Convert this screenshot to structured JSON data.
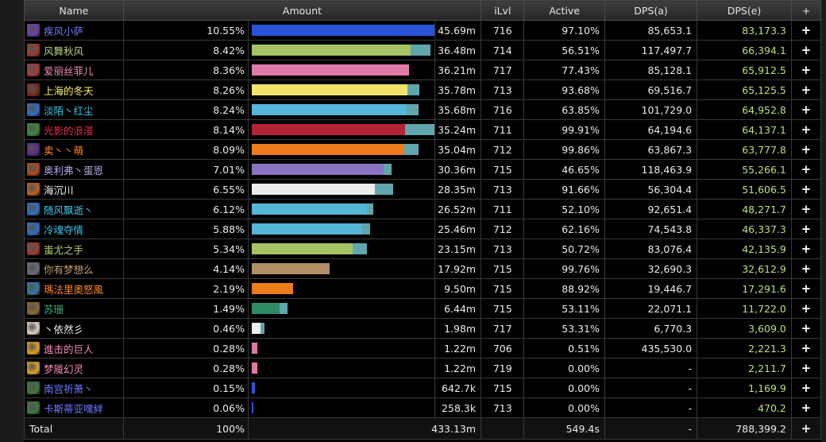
{
  "header": {
    "name": "Name",
    "amount": "Amount",
    "ilvl": "iLvl",
    "active": "Active",
    "dps_a": "DPS(a)",
    "dps_e": "DPS(e)",
    "add": "+"
  },
  "colors": {
    "extension": "#5fa6ad",
    "dps_e_text": "#b6e27c"
  },
  "rows": [
    {
      "name": "疾风小萨",
      "name_color": "#6e7dff",
      "icon": "shaman-lightning-icon",
      "icon_color": "#6b3fa8",
      "pct": "10.55%",
      "bar_color": "#2a54d8",
      "bar_fraction": 1.0,
      "ext_fraction": 0.08,
      "amount": "45.69m",
      "ilvl": "716",
      "active": "97.10%",
      "dps_a": "85,653.1",
      "dps_e": "83,173.3",
      "plus": "+"
    },
    {
      "name": "风舞秋风",
      "name_color": "#b4d47a",
      "icon": "hunter-beast-icon",
      "icon_color": "#9c3a2c",
      "pct": "8.42%",
      "bar_color": "#a4c466",
      "bar_fraction": 0.7984,
      "ext_fraction": 0.1,
      "amount": "36.48m",
      "ilvl": "714",
      "active": "56.51%",
      "dps_a": "117,497.7",
      "dps_e": "66,394.1",
      "plus": "+"
    },
    {
      "name": "爱丽丝菲儿",
      "name_color": "#f48cba",
      "icon": "paladin-holy-icon",
      "icon_color": "#a23c3c",
      "pct": "8.36%",
      "bar_color": "#e079a8",
      "bar_fraction": 0.7926,
      "ext_fraction": 0.0,
      "amount": "36.21m",
      "ilvl": "717",
      "active": "77.43%",
      "dps_a": "85,128.1",
      "dps_e": "65,912.5",
      "plus": "+"
    },
    {
      "name": "上海的冬天",
      "name_color": "#fff468",
      "icon": "rogue-dagger-icon",
      "icon_color": "#7a2a1e",
      "pct": "8.26%",
      "bar_color": "#f0e46a",
      "bar_fraction": 0.7831,
      "ext_fraction": 0.06,
      "amount": "35.78m",
      "ilvl": "713",
      "active": "93.68%",
      "dps_a": "69,516.7",
      "dps_e": "65,125.5",
      "plus": "+"
    },
    {
      "name": "淡陌丶红尘",
      "name_color": "#3fc7eb",
      "icon": "mage-frost-icon",
      "icon_color": "#2c6fc4",
      "pct": "8.24%",
      "bar_color": "#56b6d8",
      "bar_fraction": 0.7812,
      "ext_fraction": 0.06,
      "amount": "35.68m",
      "ilvl": "716",
      "active": "63.85%",
      "dps_a": "101,729.0",
      "dps_e": "64,952.8",
      "plus": "+"
    },
    {
      "name": "光影的浪漫",
      "name_color": "#e0304a",
      "icon": "deathknight-skull-icon",
      "icon_color": "#3a8a3a",
      "pct": "8.14%",
      "bar_color": "#b42236",
      "bar_fraction": 0.7713,
      "ext_fraction": 0.17,
      "amount": "35.24m",
      "ilvl": "711",
      "active": "99.91%",
      "dps_a": "64,194.6",
      "dps_e": "64,137.1",
      "plus": "+"
    },
    {
      "name": "卖丶丶萌",
      "name_color": "#ff8a24",
      "icon": "druid-moonfire-icon",
      "icon_color": "#5a2a8a",
      "pct": "8.09%",
      "bar_color": "#ee7b1a",
      "bar_fraction": 0.7669,
      "ext_fraction": 0.07,
      "amount": "35.04m",
      "ilvl": "712",
      "active": "99.86%",
      "dps_a": "63,867.3",
      "dps_e": "63,777.8",
      "plus": "+"
    },
    {
      "name": "奥利弗丶蛋恩",
      "name_color": "#b6a8e6",
      "icon": "warlock-fire-icon",
      "icon_color": "#b04a1a",
      "pct": "7.01%",
      "bar_color": "#8a74c2",
      "bar_fraction": 0.6647,
      "ext_fraction": 0.04,
      "amount": "30.36m",
      "ilvl": "715",
      "active": "46.65%",
      "dps_a": "118,463.9",
      "dps_e": "55,266.1",
      "plus": "+"
    },
    {
      "name": "海沉川",
      "name_color": "#f2f2f2",
      "icon": "priest-flame-icon",
      "icon_color": "#c0601a",
      "pct": "6.55%",
      "bar_color": "#ededed",
      "bar_fraction": 0.6208,
      "ext_fraction": 0.09,
      "amount": "28.35m",
      "ilvl": "713",
      "active": "91.66%",
      "dps_a": "56,304.4",
      "dps_e": "51,606.5",
      "plus": "+"
    },
    {
      "name": "随风飘逝丶",
      "name_color": "#3fc7eb",
      "icon": "mage-frost-icon",
      "icon_color": "#2c6fc4",
      "pct": "6.12%",
      "bar_color": "#56b6d8",
      "bar_fraction": 0.5802,
      "ext_fraction": 0.03,
      "amount": "26.52m",
      "ilvl": "711",
      "active": "52.10%",
      "dps_a": "92,651.4",
      "dps_e": "48,271.7",
      "plus": "+"
    },
    {
      "name": "冷魂夺情",
      "name_color": "#3fc7eb",
      "icon": "mage-frost-icon",
      "icon_color": "#2c6fc4",
      "pct": "5.88%",
      "bar_color": "#56b6d8",
      "bar_fraction": 0.5577,
      "ext_fraction": 0.04,
      "amount": "25.46m",
      "ilvl": "712",
      "active": "62.16%",
      "dps_a": "74,543.8",
      "dps_e": "46,337.3",
      "plus": "+"
    },
    {
      "name": "蚩尤之手",
      "name_color": "#b4d47a",
      "icon": "hunter-beast-icon",
      "icon_color": "#9c3a2c",
      "pct": "5.34%",
      "bar_color": "#a4c466",
      "bar_fraction": 0.5066,
      "ext_fraction": 0.07,
      "amount": "23.15m",
      "ilvl": "713",
      "active": "50.72%",
      "dps_a": "83,076.4",
      "dps_e": "42,135.9",
      "plus": "+"
    },
    {
      "name": "你有梦想么",
      "name_color": "#c8a070",
      "icon": "warrior-shield-icon",
      "icon_color": "#6a6a7a",
      "pct": "4.14%",
      "bar_color": "#b08e66",
      "bar_fraction": 0.3922,
      "ext_fraction": 0.0,
      "amount": "17.92m",
      "ilvl": "715",
      "active": "99.76%",
      "dps_a": "32,690.3",
      "dps_e": "32,612.9",
      "plus": "+"
    },
    {
      "name": "瑪法里奧怒風",
      "name_color": "#ff8a24",
      "icon": "druid-moonfire-icon",
      "icon_color": "#2a7aa0",
      "pct": "2.19%",
      "bar_color": "#ee7b1a",
      "bar_fraction": 0.2079,
      "ext_fraction": 0.0,
      "amount": "9.50m",
      "ilvl": "715",
      "active": "88.92%",
      "dps_a": "19,446.7",
      "dps_e": "17,291.6",
      "plus": "+"
    },
    {
      "name": "苏珊",
      "name_color": "#38b07a",
      "icon": "monk-fist-icon",
      "icon_color": "#8a6a2a",
      "pct": "1.49%",
      "bar_color": "#2e8a62",
      "bar_fraction": 0.1409,
      "ext_fraction": 0.04,
      "amount": "6.44m",
      "ilvl": "715",
      "active": "53.11%",
      "dps_a": "22,071.1",
      "dps_e": "11,722.0",
      "plus": "+"
    },
    {
      "name": "丶依然彡",
      "name_color": "#f2f2f2",
      "icon": "priest-holy-icon",
      "icon_color": "#e8d0c0",
      "pct": "0.46%",
      "bar_color": "#ededed",
      "bar_fraction": 0.0433,
      "ext_fraction": 0.02,
      "amount": "1.98m",
      "ilvl": "717",
      "active": "53.31%",
      "dps_a": "6,770.3",
      "dps_e": "3,609.0",
      "plus": "+"
    },
    {
      "name": "進击的巨人",
      "name_color": "#f48cba",
      "icon": "paladin-holy-icon",
      "icon_color": "#e0a020",
      "pct": "0.28%",
      "bar_color": "#e079a8",
      "bar_fraction": 0.0267,
      "ext_fraction": 0.0,
      "amount": "1.22m",
      "ilvl": "706",
      "active": "0.51%",
      "dps_a": "435,530.0",
      "dps_e": "2,221.3",
      "plus": "+"
    },
    {
      "name": "梦魇幻灵",
      "name_color": "#f48cba",
      "icon": "paladin-holy-icon",
      "icon_color": "#e0a020",
      "pct": "0.28%",
      "bar_color": "#e079a8",
      "bar_fraction": 0.0267,
      "ext_fraction": 0.0,
      "amount": "1.22m",
      "ilvl": "719",
      "active": "0.00%",
      "dps_a": "-",
      "dps_e": "2,211.7",
      "plus": "+"
    },
    {
      "name": "南宫祈萧丶",
      "name_color": "#6e7dff",
      "icon": "shaman-totem-icon",
      "icon_color": "#3a7a3a",
      "pct": "0.15%",
      "bar_color": "#2a54d8",
      "bar_fraction": 0.014,
      "ext_fraction": 0.0,
      "amount": "642.7k",
      "ilvl": "715",
      "active": "0.00%",
      "dps_a": "-",
      "dps_e": "1,169.9",
      "plus": "+"
    },
    {
      "name": "卡斯蒂亚嘿絆",
      "name_color": "#6e7dff",
      "icon": "shaman-totem-icon",
      "icon_color": "#3a7a3a",
      "pct": "0.06%",
      "bar_color": "#2a54d8",
      "bar_fraction": 0.0056,
      "ext_fraction": 0.0,
      "amount": "258.3k",
      "ilvl": "713",
      "active": "0.00%",
      "dps_a": "-",
      "dps_e": "470.2",
      "plus": "+"
    }
  ],
  "total": {
    "name": "Total",
    "pct": "100%",
    "amount": "433.13m",
    "ilvl": "",
    "active": "549.4s",
    "dps_a": "-",
    "dps_e": "788,399.2",
    "plus": "+"
  }
}
